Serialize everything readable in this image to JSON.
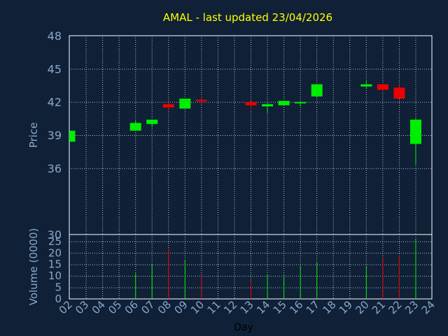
{
  "chart_data": [
    {
      "type": "candlestick",
      "title": "AMAL - last updated 23/04/2026",
      "ylabel": "Price",
      "ylim": [
        30,
        48
      ],
      "yticks": [
        30,
        36,
        39,
        42,
        45,
        48
      ],
      "ytick_labels": [
        "30",
        "36",
        "39",
        "42",
        "45",
        "48"
      ],
      "grid": true,
      "colors": {
        "up": "#00ee00",
        "down": "#ee0000"
      },
      "candles": [
        {
          "day": 2,
          "open": 38.4,
          "high": 39.4,
          "low": 38.4,
          "close": 39.4
        },
        {
          "day": 6,
          "open": 39.4,
          "high": 40.3,
          "low": 39.4,
          "close": 40.1
        },
        {
          "day": 7,
          "open": 40.0,
          "high": 40.4,
          "low": 39.7,
          "close": 40.4
        },
        {
          "day": 8,
          "open": 41.8,
          "high": 42.0,
          "low": 41.3,
          "close": 41.5
        },
        {
          "day": 9,
          "open": 41.4,
          "high": 42.3,
          "low": 41.4,
          "close": 42.3
        },
        {
          "day": 10,
          "open": 42.2,
          "high": 42.5,
          "low": 41.7,
          "close": 42.1
        },
        {
          "day": 13,
          "open": 42.0,
          "high": 42.0,
          "low": 41.3,
          "close": 41.7
        },
        {
          "day": 14,
          "open": 41.6,
          "high": 41.9,
          "low": 41.0,
          "close": 41.8
        },
        {
          "day": 15,
          "open": 41.7,
          "high": 42.1,
          "low": 41.7,
          "close": 42.1
        },
        {
          "day": 16,
          "open": 41.9,
          "high": 42.0,
          "low": 41.6,
          "close": 42.0
        },
        {
          "day": 17,
          "open": 42.5,
          "high": 43.6,
          "low": 42.4,
          "close": 43.6
        },
        {
          "day": 20,
          "open": 43.4,
          "high": 43.9,
          "low": 43.2,
          "close": 43.6
        },
        {
          "day": 21,
          "open": 43.6,
          "high": 43.6,
          "low": 43.0,
          "close": 43.1
        },
        {
          "day": 22,
          "open": 43.3,
          "high": 43.6,
          "low": 42.3,
          "close": 42.3
        },
        {
          "day": 23,
          "open": 38.2,
          "high": 40.5,
          "low": 36.3,
          "close": 40.4
        }
      ]
    },
    {
      "type": "bar",
      "ylabel": "Volume (0000)",
      "xlabel": "Day",
      "ylim": [
        0,
        28
      ],
      "yticks": [
        0,
        5,
        10,
        15,
        20,
        25
      ],
      "ytick_labels": [
        "0",
        "5",
        "10",
        "15",
        "20",
        "25"
      ],
      "x_tick_labels": [
        "02",
        "03",
        "04",
        "05",
        "06",
        "07",
        "08",
        "09",
        "10",
        "11",
        "12",
        "13",
        "14",
        "15",
        "16",
        "17",
        "18",
        "19",
        "20",
        "21",
        "22",
        "23",
        "24"
      ],
      "grid": true,
      "bars": [
        {
          "day": 6,
          "value": 11,
          "direction": "up"
        },
        {
          "day": 7,
          "value": 15,
          "direction": "up"
        },
        {
          "day": 8,
          "value": 22,
          "direction": "down"
        },
        {
          "day": 9,
          "value": 17,
          "direction": "up"
        },
        {
          "day": 10,
          "value": 10,
          "direction": "down"
        },
        {
          "day": 13,
          "value": 7.5,
          "direction": "down"
        },
        {
          "day": 14,
          "value": 10.5,
          "direction": "up"
        },
        {
          "day": 15,
          "value": 10.5,
          "direction": "up"
        },
        {
          "day": 16,
          "value": 14,
          "direction": "up"
        },
        {
          "day": 17,
          "value": 16,
          "direction": "up"
        },
        {
          "day": 20,
          "value": 14,
          "direction": "up"
        },
        {
          "day": 21,
          "value": 18,
          "direction": "down"
        },
        {
          "day": 22,
          "value": 19,
          "direction": "down"
        },
        {
          "day": 23,
          "value": 26,
          "direction": "up"
        }
      ]
    }
  ]
}
